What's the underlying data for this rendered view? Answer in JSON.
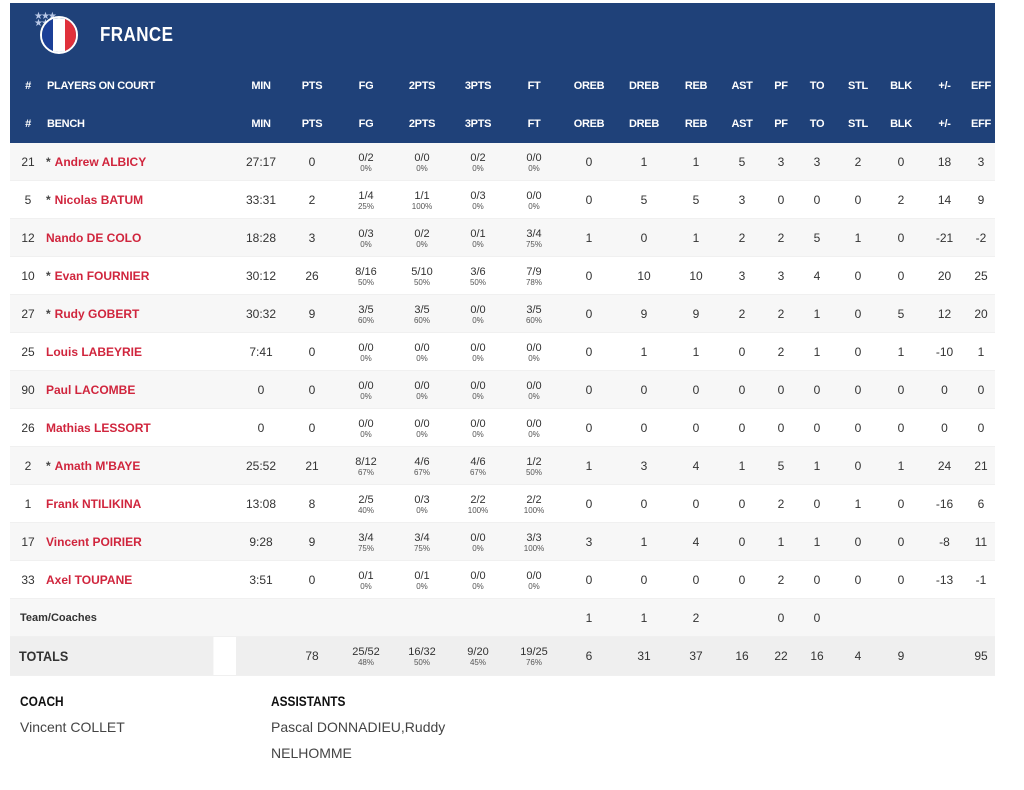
{
  "team": {
    "name": "FRANCE",
    "flag_colors": [
      "#1b3f97",
      "#ffffff",
      "#e0303b"
    ]
  },
  "headers": {
    "starters_label": "PLAYERS ON COURT",
    "bench_label": "BENCH",
    "num_label": "#",
    "cols": [
      "MIN",
      "PTS",
      "FG",
      "2PTS",
      "3PTS",
      "FT",
      "OREB",
      "DREB",
      "REB",
      "AST",
      "PF",
      "TO",
      "STL",
      "BLK",
      "+/-",
      "EFF"
    ]
  },
  "players": [
    {
      "num": "21",
      "star": true,
      "name": "Andrew ALBICY",
      "min": "27:17",
      "pts": "0",
      "fg": "0/2",
      "fg_pct": "0%",
      "p2": "0/0",
      "p2_pct": "0%",
      "p3": "0/2",
      "p3_pct": "0%",
      "ft": "0/0",
      "ft_pct": "0%",
      "oreb": "0",
      "dreb": "1",
      "reb": "1",
      "ast": "5",
      "pf": "3",
      "to": "3",
      "stl": "2",
      "blk": "0",
      "pm": "18",
      "eff": "3"
    },
    {
      "num": "5",
      "star": true,
      "name": "Nicolas BATUM",
      "min": "33:31",
      "pts": "2",
      "fg": "1/4",
      "fg_pct": "25%",
      "p2": "1/1",
      "p2_pct": "100%",
      "p3": "0/3",
      "p3_pct": "0%",
      "ft": "0/0",
      "ft_pct": "0%",
      "oreb": "0",
      "dreb": "5",
      "reb": "5",
      "ast": "3",
      "pf": "0",
      "to": "0",
      "stl": "0",
      "blk": "2",
      "pm": "14",
      "eff": "9"
    },
    {
      "num": "12",
      "star": false,
      "name": "Nando DE COLO",
      "min": "18:28",
      "pts": "3",
      "fg": "0/3",
      "fg_pct": "0%",
      "p2": "0/2",
      "p2_pct": "0%",
      "p3": "0/1",
      "p3_pct": "0%",
      "ft": "3/4",
      "ft_pct": "75%",
      "oreb": "1",
      "dreb": "0",
      "reb": "1",
      "ast": "2",
      "pf": "2",
      "to": "5",
      "stl": "1",
      "blk": "0",
      "pm": "-21",
      "eff": "-2"
    },
    {
      "num": "10",
      "star": true,
      "name": "Evan FOURNIER",
      "min": "30:12",
      "pts": "26",
      "fg": "8/16",
      "fg_pct": "50%",
      "p2": "5/10",
      "p2_pct": "50%",
      "p3": "3/6",
      "p3_pct": "50%",
      "ft": "7/9",
      "ft_pct": "78%",
      "oreb": "0",
      "dreb": "10",
      "reb": "10",
      "ast": "3",
      "pf": "3",
      "to": "4",
      "stl": "0",
      "blk": "0",
      "pm": "20",
      "eff": "25"
    },
    {
      "num": "27",
      "star": true,
      "name": "Rudy GOBERT",
      "min": "30:32",
      "pts": "9",
      "fg": "3/5",
      "fg_pct": "60%",
      "p2": "3/5",
      "p2_pct": "60%",
      "p3": "0/0",
      "p3_pct": "0%",
      "ft": "3/5",
      "ft_pct": "60%",
      "oreb": "0",
      "dreb": "9",
      "reb": "9",
      "ast": "2",
      "pf": "2",
      "to": "1",
      "stl": "0",
      "blk": "5",
      "pm": "12",
      "eff": "20"
    },
    {
      "num": "25",
      "star": false,
      "name": "Louis LABEYRIE",
      "min": "7:41",
      "pts": "0",
      "fg": "0/0",
      "fg_pct": "0%",
      "p2": "0/0",
      "p2_pct": "0%",
      "p3": "0/0",
      "p3_pct": "0%",
      "ft": "0/0",
      "ft_pct": "0%",
      "oreb": "0",
      "dreb": "1",
      "reb": "1",
      "ast": "0",
      "pf": "2",
      "to": "1",
      "stl": "0",
      "blk": "1",
      "pm": "-10",
      "eff": "1"
    },
    {
      "num": "90",
      "star": false,
      "name": "Paul LACOMBE",
      "min": "0",
      "pts": "0",
      "fg": "0/0",
      "fg_pct": "0%",
      "p2": "0/0",
      "p2_pct": "0%",
      "p3": "0/0",
      "p3_pct": "0%",
      "ft": "0/0",
      "ft_pct": "0%",
      "oreb": "0",
      "dreb": "0",
      "reb": "0",
      "ast": "0",
      "pf": "0",
      "to": "0",
      "stl": "0",
      "blk": "0",
      "pm": "0",
      "eff": "0"
    },
    {
      "num": "26",
      "star": false,
      "name": "Mathias LESSORT",
      "min": "0",
      "pts": "0",
      "fg": "0/0",
      "fg_pct": "0%",
      "p2": "0/0",
      "p2_pct": "0%",
      "p3": "0/0",
      "p3_pct": "0%",
      "ft": "0/0",
      "ft_pct": "0%",
      "oreb": "0",
      "dreb": "0",
      "reb": "0",
      "ast": "0",
      "pf": "0",
      "to": "0",
      "stl": "0",
      "blk": "0",
      "pm": "0",
      "eff": "0"
    },
    {
      "num": "2",
      "star": true,
      "name": "Amath M'BAYE",
      "min": "25:52",
      "pts": "21",
      "fg": "8/12",
      "fg_pct": "67%",
      "p2": "4/6",
      "p2_pct": "67%",
      "p3": "4/6",
      "p3_pct": "67%",
      "ft": "1/2",
      "ft_pct": "50%",
      "oreb": "1",
      "dreb": "3",
      "reb": "4",
      "ast": "1",
      "pf": "5",
      "to": "1",
      "stl": "0",
      "blk": "1",
      "pm": "24",
      "eff": "21"
    },
    {
      "num": "1",
      "star": false,
      "name": "Frank NTILIKINA",
      "min": "13:08",
      "pts": "8",
      "fg": "2/5",
      "fg_pct": "40%",
      "p2": "0/3",
      "p2_pct": "0%",
      "p3": "2/2",
      "p3_pct": "100%",
      "ft": "2/2",
      "ft_pct": "100%",
      "oreb": "0",
      "dreb": "0",
      "reb": "0",
      "ast": "0",
      "pf": "2",
      "to": "0",
      "stl": "1",
      "blk": "0",
      "pm": "-16",
      "eff": "6"
    },
    {
      "num": "17",
      "star": false,
      "name": "Vincent POIRIER",
      "min": "9:28",
      "pts": "9",
      "fg": "3/4",
      "fg_pct": "75%",
      "p2": "3/4",
      "p2_pct": "75%",
      "p3": "0/0",
      "p3_pct": "0%",
      "ft": "3/3",
      "ft_pct": "100%",
      "oreb": "3",
      "dreb": "1",
      "reb": "4",
      "ast": "0",
      "pf": "1",
      "to": "1",
      "stl": "0",
      "blk": "0",
      "pm": "-8",
      "eff": "11"
    },
    {
      "num": "33",
      "star": false,
      "name": "Axel TOUPANE",
      "min": "3:51",
      "pts": "0",
      "fg": "0/1",
      "fg_pct": "0%",
      "p2": "0/1",
      "p2_pct": "0%",
      "p3": "0/0",
      "p3_pct": "0%",
      "ft": "0/0",
      "ft_pct": "0%",
      "oreb": "0",
      "dreb": "0",
      "reb": "0",
      "ast": "0",
      "pf": "2",
      "to": "0",
      "stl": "0",
      "blk": "0",
      "pm": "-13",
      "eff": "-1"
    }
  ],
  "team_coaches": {
    "label": "Team/Coaches",
    "oreb": "1",
    "dreb": "1",
    "reb": "2",
    "pf": "0",
    "to": "0"
  },
  "totals": {
    "label": "TOTALS",
    "pts": "78",
    "fg": "25/52",
    "fg_pct": "48%",
    "p2": "16/32",
    "p2_pct": "50%",
    "p3": "9/20",
    "p3_pct": "45%",
    "ft": "19/25",
    "ft_pct": "76%",
    "oreb": "6",
    "dreb": "31",
    "reb": "37",
    "ast": "16",
    "pf": "22",
    "to": "16",
    "stl": "4",
    "blk": "9",
    "eff": "95"
  },
  "staff": {
    "coach_label": "COACH",
    "coach_name": "Vincent COLLET",
    "assistants_label": "ASSISTANTS",
    "assistants_line1": "Pascal DONNADIEU,Ruddy",
    "assistants_line2": "NELHOMME"
  }
}
